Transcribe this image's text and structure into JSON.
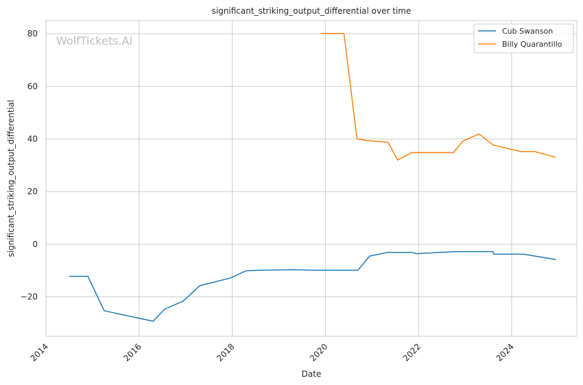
{
  "chart_data": {
    "type": "line",
    "title": "significant_striking_output_differential over time",
    "xlabel": "Date",
    "ylabel": "significant_striking_output_differential",
    "watermark": "WolfTickets.AI",
    "xlim": [
      2014.0,
      2025.4
    ],
    "ylim": [
      -35,
      85
    ],
    "x_ticks": [
      2014,
      2016,
      2018,
      2020,
      2022,
      2024
    ],
    "x_tick_labels": [
      "2014",
      "2016",
      "2018",
      "2020",
      "2022",
      "2024"
    ],
    "y_ticks": [
      -20,
      0,
      20,
      40,
      60,
      80
    ],
    "y_tick_labels": [
      "−20",
      "0",
      "20",
      "40",
      "60",
      "80"
    ],
    "grid": true,
    "legend_position": "top-right",
    "series": [
      {
        "name": "Cub Swanson",
        "color": "#1f77b4",
        "x": [
          2014.5,
          2014.9,
          2015.25,
          2016.3,
          2016.55,
          2016.95,
          2017.3,
          2017.95,
          2018.3,
          2018.6,
          2019.3,
          2019.8,
          2020.7,
          2020.95,
          2021.35,
          2021.85,
          2021.95,
          2022.8,
          2023.6,
          2023.62,
          2024.25,
          2024.95
        ],
        "y": [
          -12.2,
          -12.2,
          -25.3,
          -29.3,
          -24.7,
          -21.6,
          -15.8,
          -12.9,
          -10.1,
          -9.9,
          -9.7,
          -9.9,
          -9.9,
          -4.5,
          -3.1,
          -3.1,
          -3.6,
          -2.8,
          -2.8,
          -3.8,
          -3.8,
          -5.8
        ]
      },
      {
        "name": "Billy Quarantillo",
        "color": "#ff7f0e",
        "x": [
          2019.9,
          2020.4,
          2020.68,
          2020.9,
          2021.35,
          2021.55,
          2021.85,
          2022.75,
          2022.95,
          2023.3,
          2023.6,
          2024.2,
          2024.5,
          2024.95
        ],
        "y": [
          80.1,
          80.1,
          40.0,
          39.4,
          38.7,
          32.0,
          34.8,
          34.8,
          39.2,
          41.9,
          37.7,
          35.2,
          35.2,
          33.0
        ]
      }
    ]
  }
}
